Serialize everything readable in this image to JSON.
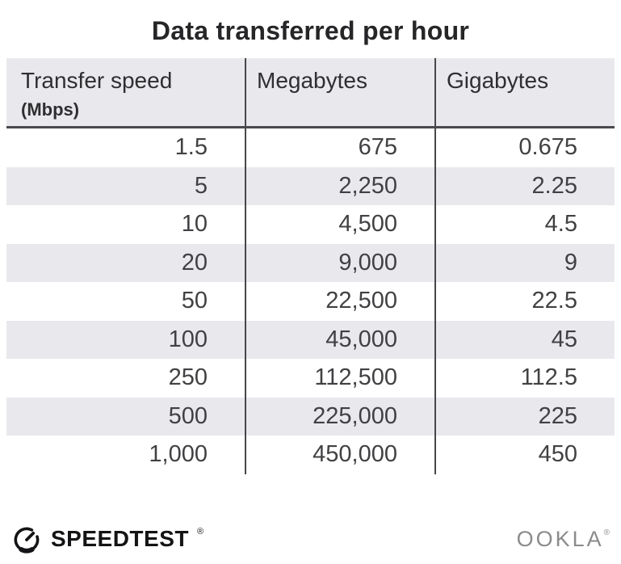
{
  "title": "Data transferred per hour",
  "table": {
    "columns": [
      {
        "label": "Transfer speed",
        "sublabel": "(Mbps)"
      },
      {
        "label": "Megabytes",
        "sublabel": ""
      },
      {
        "label": "Gigabytes",
        "sublabel": ""
      }
    ],
    "rows": [
      [
        "1.5",
        "675",
        "0.675"
      ],
      [
        "5",
        "2,250",
        "2.25"
      ],
      [
        "10",
        "4,500",
        "4.5"
      ],
      [
        "20",
        "9,000",
        "9"
      ],
      [
        "50",
        "22,500",
        "22.5"
      ],
      [
        "100",
        "45,000",
        "45"
      ],
      [
        "250",
        "112,500",
        "112.5"
      ],
      [
        "500",
        "225,000",
        "225"
      ],
      [
        "1,000",
        "450,000",
        "450"
      ]
    ]
  },
  "footer": {
    "brand": "SPEEDTEST",
    "brand_reg_mark": "®",
    "brand_icon": "speedometer-gauge-icon",
    "company": "OOKLA",
    "company_reg_mark": "®"
  },
  "colors": {
    "background": "#ffffff",
    "stripe_gray": "#e9e9ed",
    "divider_dark": "#47474a",
    "title_text": "#262628",
    "body_text": "#414144",
    "brand_black": "#141416",
    "ookla_gray": "#8b8b8d"
  },
  "chart_data": {
    "type": "table",
    "title": "Data transferred per hour",
    "columns": [
      "Transfer speed (Mbps)",
      "Megabytes",
      "Gigabytes"
    ],
    "rows": [
      [
        1.5,
        675,
        0.675
      ],
      [
        5,
        2250,
        2.25
      ],
      [
        10,
        4500,
        4.5
      ],
      [
        20,
        9000,
        9
      ],
      [
        50,
        22500,
        22.5
      ],
      [
        100,
        45000,
        45
      ],
      [
        250,
        112500,
        112.5
      ],
      [
        500,
        225000,
        225
      ],
      [
        1000,
        450000,
        450
      ]
    ],
    "layout": {
      "striped_rows": true,
      "column_dividers": true,
      "header_bottom_border": true
    }
  }
}
